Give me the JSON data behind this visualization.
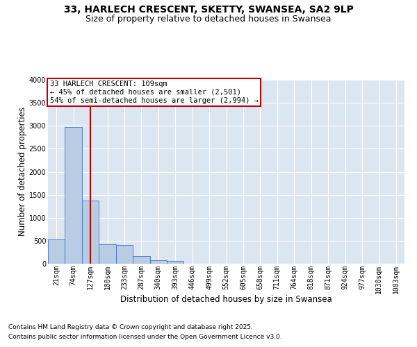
{
  "title_line1": "33, HARLECH CRESCENT, SKETTY, SWANSEA, SA2 9LP",
  "title_line2": "Size of property relative to detached houses in Swansea",
  "xlabel": "Distribution of detached houses by size in Swansea",
  "ylabel": "Number of detached properties",
  "footer_line1": "Contains HM Land Registry data © Crown copyright and database right 2025.",
  "footer_line2": "Contains public sector information licensed under the Open Government Licence v3.0.",
  "annotation_line1": "33 HARLECH CRESCENT: 109sqm",
  "annotation_line2": "← 45% of detached houses are smaller (2,501)",
  "annotation_line3": "54% of semi-detached houses are larger (2,994) →",
  "categories": [
    "21sqm",
    "74sqm",
    "127sqm",
    "180sqm",
    "233sqm",
    "287sqm",
    "340sqm",
    "393sqm",
    "446sqm",
    "499sqm",
    "552sqm",
    "605sqm",
    "658sqm",
    "711sqm",
    "764sqm",
    "818sqm",
    "871sqm",
    "924sqm",
    "977sqm",
    "1030sqm",
    "1083sqm"
  ],
  "values": [
    530,
    2970,
    1370,
    430,
    410,
    165,
    80,
    55,
    0,
    0,
    0,
    0,
    0,
    0,
    0,
    0,
    0,
    0,
    0,
    0,
    0
  ],
  "bar_color": "#b8cce4",
  "bar_edge_color": "#4472c4",
  "vline_x": 2,
  "vline_color": "#c00000",
  "annotation_box_edge_color": "#c00000",
  "fig_bg_color": "#ffffff",
  "plot_bg_color": "#dce6f1",
  "ylim": [
    0,
    4000
  ],
  "yticks": [
    0,
    500,
    1000,
    1500,
    2000,
    2500,
    3000,
    3500,
    4000
  ],
  "grid_color": "#ffffff",
  "title_fontsize": 10,
  "subtitle_fontsize": 9,
  "axis_label_fontsize": 8.5,
  "tick_fontsize": 7,
  "ann_fontsize": 7.5,
  "footer_fontsize": 6.5
}
